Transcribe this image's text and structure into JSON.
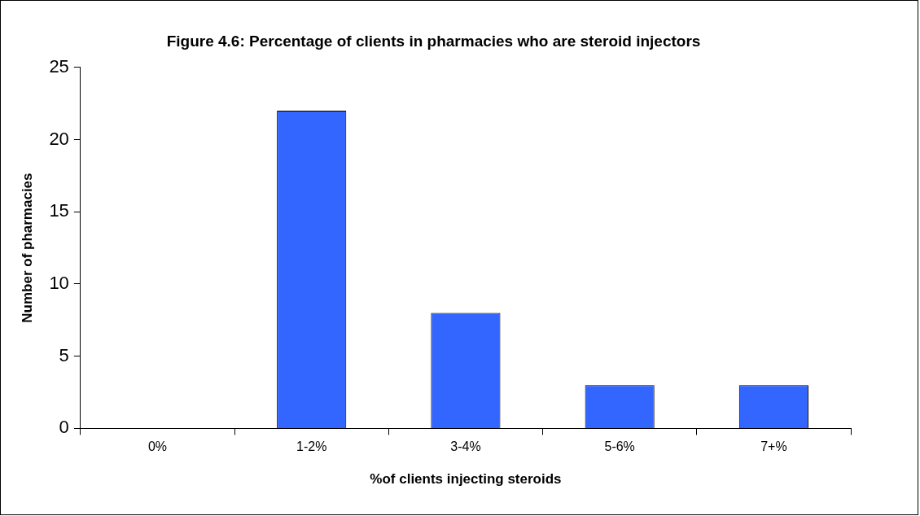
{
  "chart_data": {
    "type": "bar",
    "title": "Figure 4.6: Percentage of clients in pharmacies who are steroid injectors",
    "xlabel": "%of clients injecting steroids",
    "ylabel": "Number of pharmacies",
    "categories": [
      "0%",
      "1-2%",
      "3-4%",
      "5-6%",
      "7+%"
    ],
    "values": [
      0,
      22,
      8,
      3,
      3
    ],
    "color": "#3366ff",
    "ylim": [
      0,
      25
    ],
    "yticks": [
      0,
      5,
      10,
      15,
      20,
      25
    ],
    "grid": false,
    "legend": false
  }
}
